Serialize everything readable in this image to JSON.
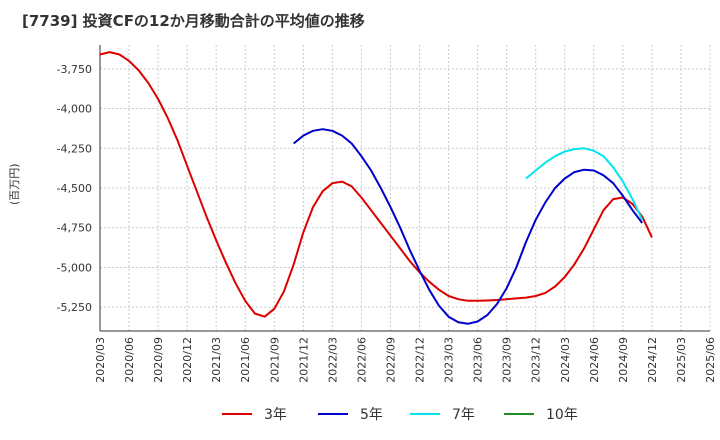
{
  "chart_data": {
    "type": "line",
    "title": "[7739]  投資CFの12か月移動合計の平均値の推移",
    "ylabel": "(百万円)",
    "xlabel": "",
    "ylim": [
      -5400,
      -3600
    ],
    "yticks": [
      -3750,
      -4000,
      -4250,
      -4500,
      -4750,
      -5000,
      -5250
    ],
    "ytick_labels": [
      "-3,750",
      "-4,000",
      "-4,250",
      "-4,500",
      "-4,750",
      "-5,000",
      "-5,250"
    ],
    "xlim": [
      "2020-03",
      "2025-06"
    ],
    "xtick_labels": [
      "2020/03",
      "2020/06",
      "2020/09",
      "2020/12",
      "2021/03",
      "2021/06",
      "2021/09",
      "2021/12",
      "2022/03",
      "2022/06",
      "2022/09",
      "2022/12",
      "2023/03",
      "2023/06",
      "2023/09",
      "2023/12",
      "2024/03",
      "2024/06",
      "2024/09",
      "2024/12",
      "2025/03",
      "2025/06"
    ],
    "grid": true,
    "legend_position": "bottom",
    "series": [
      {
        "name": "3年",
        "color": "#dd0000",
        "points": [
          [
            "2020-03",
            -3660
          ],
          [
            "2020-04",
            -3645
          ],
          [
            "2020-05",
            -3660
          ],
          [
            "2020-06",
            -3700
          ],
          [
            "2020-07",
            -3760
          ],
          [
            "2020-08",
            -3840
          ],
          [
            "2020-09",
            -3940
          ],
          [
            "2020-10",
            -4060
          ],
          [
            "2020-11",
            -4200
          ],
          [
            "2020-12",
            -4360
          ],
          [
            "2021-01",
            -4520
          ],
          [
            "2021-02",
            -4680
          ],
          [
            "2021-03",
            -4830
          ],
          [
            "2021-04",
            -4970
          ],
          [
            "2021-05",
            -5100
          ],
          [
            "2021-06",
            -5210
          ],
          [
            "2021-07",
            -5290
          ],
          [
            "2021-08",
            -5310
          ],
          [
            "2021-09",
            -5260
          ],
          [
            "2021-10",
            -5150
          ],
          [
            "2021-11",
            -4980
          ],
          [
            "2021-12",
            -4780
          ],
          [
            "2022-01",
            -4620
          ],
          [
            "2022-02",
            -4520
          ],
          [
            "2022-03",
            -4470
          ],
          [
            "2022-04",
            -4460
          ],
          [
            "2022-05",
            -4490
          ],
          [
            "2022-06",
            -4560
          ],
          [
            "2022-07",
            -4640
          ],
          [
            "2022-08",
            -4720
          ],
          [
            "2022-09",
            -4800
          ],
          [
            "2022-10",
            -4880
          ],
          [
            "2022-11",
            -4960
          ],
          [
            "2022-12",
            -5030
          ],
          [
            "2023-01",
            -5090
          ],
          [
            "2023-02",
            -5140
          ],
          [
            "2023-03",
            -5180
          ],
          [
            "2023-04",
            -5200
          ],
          [
            "2023-05",
            -5210
          ],
          [
            "2023-06",
            -5210
          ],
          [
            "2023-07",
            -5208
          ],
          [
            "2023-08",
            -5205
          ],
          [
            "2023-09",
            -5200
          ],
          [
            "2023-10",
            -5195
          ],
          [
            "2023-11",
            -5190
          ],
          [
            "2023-12",
            -5180
          ],
          [
            "2024-01",
            -5160
          ],
          [
            "2024-02",
            -5120
          ],
          [
            "2024-03",
            -5060
          ],
          [
            "2024-04",
            -4980
          ],
          [
            "2024-05",
            -4880
          ],
          [
            "2024-06",
            -4760
          ],
          [
            "2024-07",
            -4640
          ],
          [
            "2024-08",
            -4570
          ],
          [
            "2024-09",
            -4560
          ],
          [
            "2024-10",
            -4600
          ],
          [
            "2024-11",
            -4680
          ],
          [
            "2024-12",
            -4810
          ]
        ]
      },
      {
        "name": "5年",
        "color": "#0000cc",
        "points": [
          [
            "2021-11",
            -4220
          ],
          [
            "2021-12",
            -4170
          ],
          [
            "2022-01",
            -4140
          ],
          [
            "2022-02",
            -4130
          ],
          [
            "2022-03",
            -4140
          ],
          [
            "2022-04",
            -4170
          ],
          [
            "2022-05",
            -4220
          ],
          [
            "2022-06",
            -4300
          ],
          [
            "2022-07",
            -4390
          ],
          [
            "2022-08",
            -4500
          ],
          [
            "2022-09",
            -4620
          ],
          [
            "2022-10",
            -4750
          ],
          [
            "2022-11",
            -4890
          ],
          [
            "2022-12",
            -5020
          ],
          [
            "2023-01",
            -5140
          ],
          [
            "2023-02",
            -5240
          ],
          [
            "2023-03",
            -5310
          ],
          [
            "2023-04",
            -5345
          ],
          [
            "2023-05",
            -5355
          ],
          [
            "2023-06",
            -5340
          ],
          [
            "2023-07",
            -5300
          ],
          [
            "2023-08",
            -5230
          ],
          [
            "2023-09",
            -5130
          ],
          [
            "2023-10",
            -5000
          ],
          [
            "2023-11",
            -4840
          ],
          [
            "2023-12",
            -4700
          ],
          [
            "2024-01",
            -4590
          ],
          [
            "2024-02",
            -4500
          ],
          [
            "2024-03",
            -4440
          ],
          [
            "2024-04",
            -4400
          ],
          [
            "2024-05",
            -4385
          ],
          [
            "2024-06",
            -4390
          ],
          [
            "2024-07",
            -4420
          ],
          [
            "2024-08",
            -4470
          ],
          [
            "2024-09",
            -4550
          ],
          [
            "2024-10",
            -4640
          ],
          [
            "2024-11",
            -4720
          ]
        ]
      },
      {
        "name": "7年",
        "color": "#00e5ee",
        "points": [
          [
            "2023-11",
            -4440
          ],
          [
            "2023-12",
            -4390
          ],
          [
            "2024-01",
            -4340
          ],
          [
            "2024-02",
            -4300
          ],
          [
            "2024-03",
            -4270
          ],
          [
            "2024-04",
            -4255
          ],
          [
            "2024-05",
            -4250
          ],
          [
            "2024-06",
            -4265
          ],
          [
            "2024-07",
            -4300
          ],
          [
            "2024-08",
            -4370
          ],
          [
            "2024-09",
            -4460
          ],
          [
            "2024-10",
            -4570
          ],
          [
            "2024-11",
            -4700
          ]
        ]
      },
      {
        "name": "10年",
        "color": "#228b22",
        "points": []
      }
    ]
  }
}
